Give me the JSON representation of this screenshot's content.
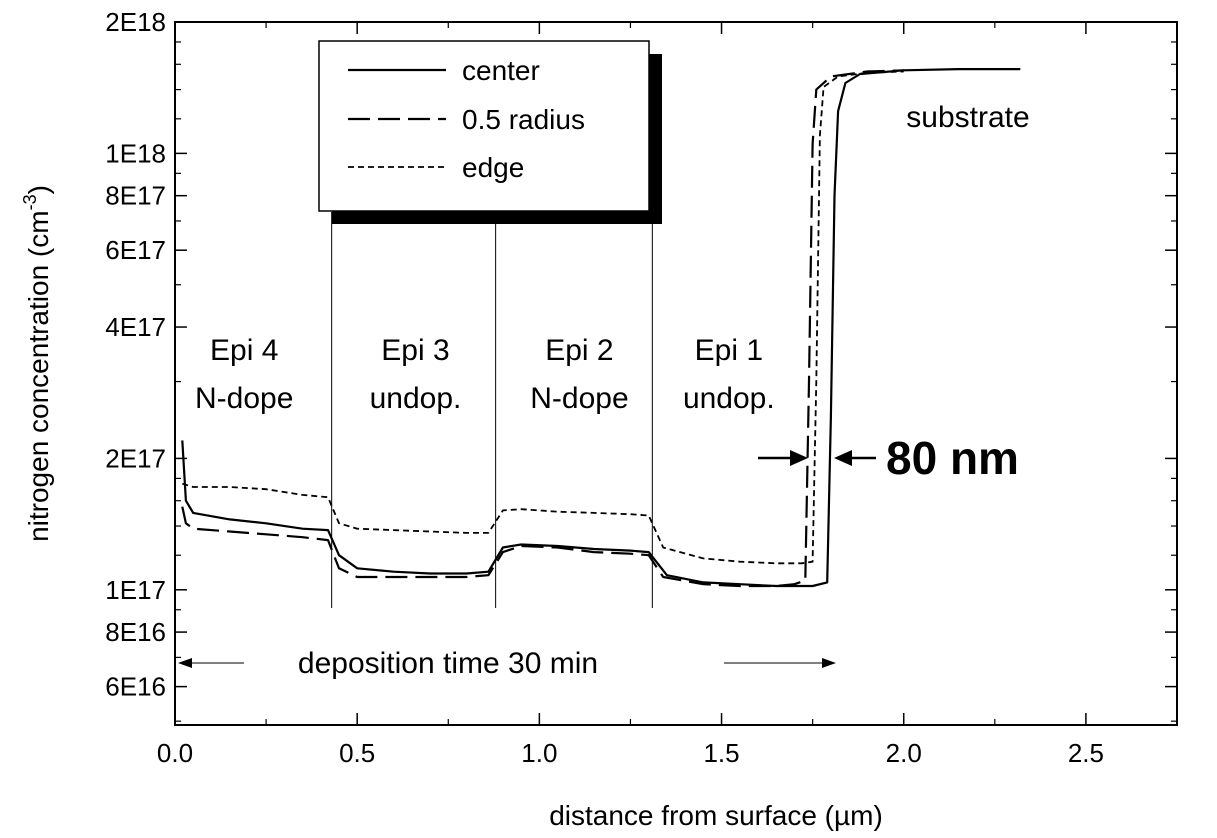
{
  "chart_data": {
    "type": "line",
    "xlabel": "distance from surface (µm)",
    "ylabel_main": "nitrogen concentration (cm",
    "ylabel_sup": "-3",
    "ylabel_close": ")",
    "xlim": [
      0.0,
      2.75
    ],
    "ylim": [
      4.9e+16,
      2e+18
    ],
    "y_scale": "log",
    "x_ticks": [
      {
        "value": 0.0,
        "label": "0.0"
      },
      {
        "value": 0.5,
        "label": "0.5"
      },
      {
        "value": 1.0,
        "label": "1.0"
      },
      {
        "value": 1.5,
        "label": "1.5"
      },
      {
        "value": 2.0,
        "label": "2.0"
      },
      {
        "value": 2.5,
        "label": "2.5"
      }
    ],
    "y_ticks": [
      {
        "value": 6e+16,
        "label": "6E16"
      },
      {
        "value": 8e+16,
        "label": "8E16"
      },
      {
        "value": 1e+17,
        "label": "1E17"
      },
      {
        "value": 2e+17,
        "label": "2E17"
      },
      {
        "value": 4e+17,
        "label": "4E17"
      },
      {
        "value": 6e+17,
        "label": "6E17"
      },
      {
        "value": 8e+17,
        "label": "8E17"
      },
      {
        "value": 1e+18,
        "label": "1E18"
      },
      {
        "value": 2e+18,
        "label": "2E18"
      }
    ],
    "boundaries": [
      0.43,
      0.88,
      1.31
    ],
    "regions": [
      {
        "x": 0.19,
        "line1": "Epi 4",
        "line2": "N-dope"
      },
      {
        "x": 0.66,
        "line1": "Epi 3",
        "line2": "undop."
      },
      {
        "x": 1.11,
        "line1": "Epi 2",
        "line2": "N-dope"
      },
      {
        "x": 1.52,
        "line1": "Epi 1",
        "line2": "undop."
      }
    ],
    "annotations": {
      "substrate": "substrate",
      "width_label": "80 nm",
      "deposition": "deposition time 30 min"
    },
    "series": [
      {
        "name": "center",
        "style": "solid",
        "points": [
          [
            0.02,
            2.2e+17
          ],
          [
            0.03,
            1.6e+17
          ],
          [
            0.05,
            1.5e+17
          ],
          [
            0.15,
            1.45e+17
          ],
          [
            0.25,
            1.42e+17
          ],
          [
            0.35,
            1.38e+17
          ],
          [
            0.42,
            1.37e+17
          ],
          [
            0.45,
            1.2e+17
          ],
          [
            0.5,
            1.12e+17
          ],
          [
            0.6,
            1.1e+17
          ],
          [
            0.7,
            1.09e+17
          ],
          [
            0.8,
            1.09e+17
          ],
          [
            0.86,
            1.1e+17
          ],
          [
            0.9,
            1.25e+17
          ],
          [
            0.95,
            1.27e+17
          ],
          [
            1.05,
            1.26e+17
          ],
          [
            1.15,
            1.24e+17
          ],
          [
            1.25,
            1.23e+17
          ],
          [
            1.3,
            1.22e+17
          ],
          [
            1.35,
            1.08e+17
          ],
          [
            1.45,
            1.04e+17
          ],
          [
            1.55,
            1.03e+17
          ],
          [
            1.65,
            1.02e+17
          ],
          [
            1.75,
            1.02e+17
          ],
          [
            1.79,
            1.04e+17
          ],
          [
            1.8,
            2.5e+17
          ],
          [
            1.81,
            8e+17
          ],
          [
            1.82,
            1.25e+18
          ],
          [
            1.84,
            1.45e+18
          ],
          [
            1.88,
            1.52e+18
          ],
          [
            2.0,
            1.55e+18
          ],
          [
            2.15,
            1.56e+18
          ],
          [
            2.32,
            1.56e+18
          ]
        ]
      },
      {
        "name": "0.5 radius",
        "style": "dashed",
        "points": [
          [
            0.02,
            1.55e+17
          ],
          [
            0.03,
            1.42e+17
          ],
          [
            0.05,
            1.38e+17
          ],
          [
            0.15,
            1.36e+17
          ],
          [
            0.25,
            1.34e+17
          ],
          [
            0.35,
            1.32e+17
          ],
          [
            0.42,
            1.3e+17
          ],
          [
            0.45,
            1.12e+17
          ],
          [
            0.5,
            1.07e+17
          ],
          [
            0.6,
            1.07e+17
          ],
          [
            0.7,
            1.07e+17
          ],
          [
            0.8,
            1.07e+17
          ],
          [
            0.86,
            1.08e+17
          ],
          [
            0.9,
            1.22e+17
          ],
          [
            0.95,
            1.26e+17
          ],
          [
            1.05,
            1.25e+17
          ],
          [
            1.15,
            1.22e+17
          ],
          [
            1.25,
            1.21e+17
          ],
          [
            1.3,
            1.2e+17
          ],
          [
            1.34,
            1.07e+17
          ],
          [
            1.45,
            1.03e+17
          ],
          [
            1.55,
            1.02e+17
          ],
          [
            1.65,
            1.02e+17
          ],
          [
            1.7,
            1.03e+17
          ],
          [
            1.73,
            1.05e+17
          ],
          [
            1.74,
            3e+17
          ],
          [
            1.75,
            1.05e+18
          ],
          [
            1.76,
            1.4e+18
          ],
          [
            1.8,
            1.5e+18
          ],
          [
            1.9,
            1.54e+18
          ],
          [
            2.0,
            1.55e+18
          ]
        ]
      },
      {
        "name": "edge",
        "style": "dotted",
        "points": [
          [
            0.02,
            1.75e+17
          ],
          [
            0.05,
            1.72e+17
          ],
          [
            0.15,
            1.72e+17
          ],
          [
            0.25,
            1.7e+17
          ],
          [
            0.35,
            1.65e+17
          ],
          [
            0.42,
            1.63e+17
          ],
          [
            0.45,
            1.42e+17
          ],
          [
            0.5,
            1.38e+17
          ],
          [
            0.6,
            1.37e+17
          ],
          [
            0.7,
            1.36e+17
          ],
          [
            0.8,
            1.35e+17
          ],
          [
            0.86,
            1.35e+17
          ],
          [
            0.9,
            1.52e+17
          ],
          [
            0.95,
            1.53e+17
          ],
          [
            1.05,
            1.51e+17
          ],
          [
            1.15,
            1.5e+17
          ],
          [
            1.25,
            1.49e+17
          ],
          [
            1.3,
            1.48e+17
          ],
          [
            1.34,
            1.25e+17
          ],
          [
            1.45,
            1.18e+17
          ],
          [
            1.55,
            1.16e+17
          ],
          [
            1.65,
            1.15e+17
          ],
          [
            1.72,
            1.15e+17
          ],
          [
            1.75,
            1.16e+17
          ],
          [
            1.76,
            3e+17
          ],
          [
            1.77,
            1.1e+18
          ],
          [
            1.78,
            1.42e+18
          ],
          [
            1.82,
            1.5e+18
          ],
          [
            1.9,
            1.53e+18
          ],
          [
            2.0,
            1.54e+18
          ]
        ]
      }
    ],
    "legend_position": "top-center"
  }
}
